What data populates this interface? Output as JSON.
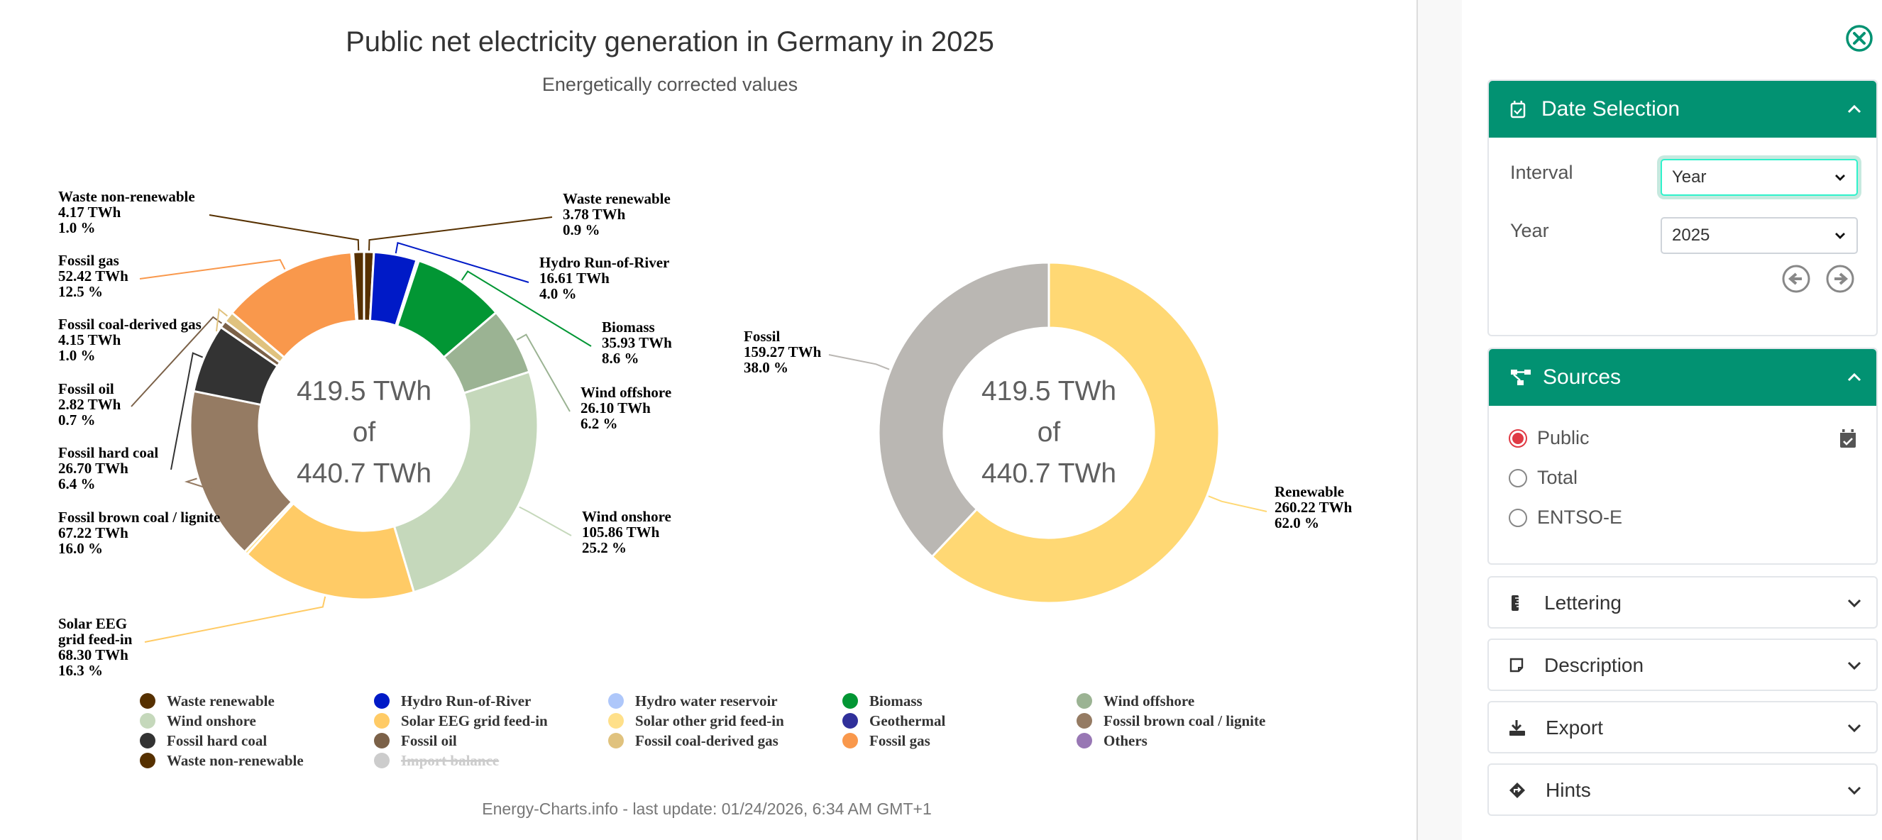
{
  "chart_data": [
    {
      "type": "pie",
      "variant": "donut",
      "title": "Public net electricity generation in Germany in 2025",
      "subtitle": "Energetically corrected values",
      "center_text": [
        "419.5 TWh",
        "of",
        "440.7 TWh"
      ],
      "unit": "TWh",
      "slices": [
        {
          "name": "Waste renewable",
          "value": 3.78,
          "percent": 0.9,
          "color": "#563000",
          "label": true
        },
        {
          "name": "Hydro Run-of-River",
          "value": 16.61,
          "percent": 4.0,
          "color": "#001ac7",
          "label": true
        },
        {
          "name": "Hydro water reservoir",
          "value": 0.9,
          "percent": 0.2,
          "color": "#aec7fa",
          "label": false
        },
        {
          "name": "Biomass",
          "value": 35.93,
          "percent": 8.6,
          "color": "#029634",
          "label": true
        },
        {
          "name": "Wind offshore",
          "value": 26.1,
          "percent": 6.2,
          "color": "#9bb393",
          "label": true
        },
        {
          "name": "Wind onshore",
          "value": 105.86,
          "percent": 25.2,
          "color": "#c5d8bb",
          "label": true
        },
        {
          "name": "Solar EEG grid feed-in",
          "value": 68.3,
          "percent": 16.3,
          "color": "#ffcb66",
          "label": true,
          "label_lines": [
            "Solar EEG",
            "grid feed-in"
          ]
        },
        {
          "name": "Solar other grid feed-in",
          "value": 1.3,
          "percent": 0.3,
          "color": "#ffe08a",
          "label": false
        },
        {
          "name": "Fossil brown coal / lignite",
          "value": 67.22,
          "percent": 16.0,
          "color": "#957b63",
          "label": true
        },
        {
          "name": "Fossil hard coal",
          "value": 26.7,
          "percent": 6.4,
          "color": "#333333",
          "label": true
        },
        {
          "name": "Fossil oil",
          "value": 2.82,
          "percent": 0.7,
          "color": "#7b6148",
          "label": true
        },
        {
          "name": "Fossil coal-derived gas",
          "value": 4.15,
          "percent": 1.0,
          "color": "#e0c27e",
          "label": true
        },
        {
          "name": "Fossil gas",
          "value": 52.42,
          "percent": 12.5,
          "color": "#f9984c",
          "label": true
        },
        {
          "name": "Others",
          "value": 0.7,
          "percent": 0.2,
          "color": "#9877b4",
          "label": false
        },
        {
          "name": "Waste non-renewable",
          "value": 4.17,
          "percent": 1.0,
          "color": "#563000",
          "label": true
        }
      ],
      "legend": [
        {
          "name": "Waste renewable",
          "color": "#563000",
          "enabled": true
        },
        {
          "name": "Hydro Run-of-River",
          "color": "#001ac7",
          "enabled": true
        },
        {
          "name": "Hydro water reservoir",
          "color": "#aec7fa",
          "enabled": true
        },
        {
          "name": "Biomass",
          "color": "#029634",
          "enabled": true
        },
        {
          "name": "Wind offshore",
          "color": "#9bb393",
          "enabled": true
        },
        {
          "name": "Wind onshore",
          "color": "#c5d8bb",
          "enabled": true
        },
        {
          "name": "Solar EEG grid feed-in",
          "color": "#ffcb66",
          "enabled": true
        },
        {
          "name": "Solar other grid feed-in",
          "color": "#ffe08a",
          "enabled": true
        },
        {
          "name": "Geothermal",
          "color": "#30309a",
          "enabled": true
        },
        {
          "name": "Fossil brown coal / lignite",
          "color": "#957b63",
          "enabled": true
        },
        {
          "name": "Fossil hard coal",
          "color": "#333333",
          "enabled": true
        },
        {
          "name": "Fossil oil",
          "color": "#7b6148",
          "enabled": true
        },
        {
          "name": "Fossil coal-derived gas",
          "color": "#e0c27e",
          "enabled": true
        },
        {
          "name": "Fossil gas",
          "color": "#f9984c",
          "enabled": true
        },
        {
          "name": "Others",
          "color": "#9877b4",
          "enabled": true
        },
        {
          "name": "Waste non-renewable",
          "color": "#563000",
          "enabled": true
        },
        {
          "name": "Import balance",
          "color": "#cccccc",
          "enabled": false
        }
      ],
      "legend_placement": "bottom"
    },
    {
      "type": "pie",
      "variant": "donut",
      "center_text": [
        "419.5 TWh",
        "of",
        "440.7 TWh"
      ],
      "unit": "TWh",
      "slices": [
        {
          "name": "Renewable",
          "value": 260.22,
          "percent": 62.0,
          "color": "#ffd874"
        },
        {
          "name": "Fossil",
          "value": 159.27,
          "percent": 38.0,
          "color": "#bab7b3"
        }
      ]
    }
  ],
  "footer": "Energy-Charts.info - last update: 01/24/2026, 6:34 AM GMT+1",
  "sidebar": {
    "date_selection": {
      "title": "Date Selection",
      "interval_label": "Interval",
      "interval_value": "Year",
      "year_label": "Year",
      "year_value": "2025"
    },
    "sources": {
      "title": "Sources",
      "options": [
        {
          "label": "Public",
          "checked": true
        },
        {
          "label": "Total",
          "checked": false
        },
        {
          "label": "ENTSO-E",
          "checked": false
        }
      ]
    },
    "collapsed_panels": [
      {
        "title": "Lettering",
        "icon": "ruler-icon"
      },
      {
        "title": "Description",
        "icon": "note-icon"
      },
      {
        "title": "Export",
        "icon": "download-icon"
      },
      {
        "title": "Hints",
        "icon": "directions-icon"
      }
    ],
    "accent_color": "#029272"
  }
}
